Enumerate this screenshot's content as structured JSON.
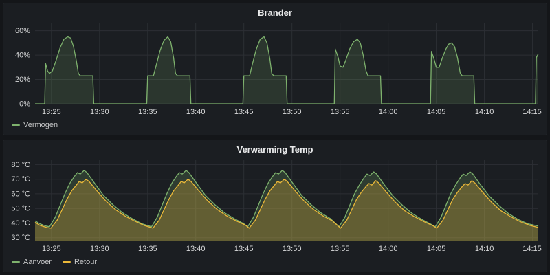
{
  "theme": {
    "page_bg": "#141619",
    "panel_bg": "#1b1e22",
    "grid": "#2c2f34",
    "tick_text": "#d8d9da",
    "title_text": "#e9eaeb"
  },
  "chart_data": [
    {
      "type": "area",
      "title": "Brander",
      "legend_position": "bottom-left",
      "grid": true,
      "x_range": [
        23.3,
        75.6
      ],
      "x_ticks": [
        "13:25",
        "13:30",
        "13:35",
        "13:40",
        "13:45",
        "13:50",
        "13:55",
        "14:00",
        "14:05",
        "14:10",
        "14:15"
      ],
      "x_tick_minutes": [
        25,
        30,
        35,
        40,
        45,
        50,
        55,
        60,
        65,
        70,
        75
      ],
      "ylim": [
        0,
        66
      ],
      "y_ticks": [
        0,
        20,
        40,
        60
      ],
      "y_tick_labels": [
        "0%",
        "20%",
        "40%",
        "60%"
      ],
      "series": [
        {
          "name": "Vermogen",
          "color": "#7EB26D",
          "fill_opacity": 0.17,
          "points": [
            [
              23.3,
              0
            ],
            [
              24.3,
              0
            ],
            [
              24.4,
              33
            ],
            [
              24.6,
              27
            ],
            [
              24.8,
              25
            ],
            [
              25.1,
              27
            ],
            [
              25.5,
              36
            ],
            [
              25.9,
              46
            ],
            [
              26.3,
              53
            ],
            [
              26.7,
              55
            ],
            [
              27.0,
              54
            ],
            [
              27.3,
              47
            ],
            [
              27.6,
              35
            ],
            [
              27.8,
              25
            ],
            [
              28.0,
              23
            ],
            [
              29.3,
              23
            ],
            [
              29.4,
              0
            ],
            [
              34.9,
              0
            ],
            [
              35.0,
              23
            ],
            [
              35.6,
              23
            ],
            [
              35.9,
              32
            ],
            [
              36.3,
              44
            ],
            [
              36.7,
              52
            ],
            [
              37.1,
              55
            ],
            [
              37.4,
              51
            ],
            [
              37.7,
              38
            ],
            [
              37.9,
              25
            ],
            [
              38.1,
              23
            ],
            [
              39.4,
              23
            ],
            [
              39.5,
              0
            ],
            [
              44.9,
              0
            ],
            [
              45.0,
              23
            ],
            [
              45.6,
              23
            ],
            [
              45.9,
              33
            ],
            [
              46.3,
              45
            ],
            [
              46.7,
              53
            ],
            [
              47.1,
              55
            ],
            [
              47.4,
              50
            ],
            [
              47.7,
              37
            ],
            [
              47.9,
              25
            ],
            [
              48.1,
              23
            ],
            [
              49.4,
              23
            ],
            [
              49.5,
              0
            ],
            [
              54.4,
              0
            ],
            [
              54.5,
              45
            ],
            [
              54.8,
              38
            ],
            [
              55.0,
              31
            ],
            [
              55.3,
              30
            ],
            [
              55.6,
              36
            ],
            [
              56.0,
              45
            ],
            [
              56.4,
              51
            ],
            [
              56.8,
              53
            ],
            [
              57.1,
              50
            ],
            [
              57.4,
              40
            ],
            [
              57.7,
              27
            ],
            [
              57.9,
              23
            ],
            [
              59.2,
              23
            ],
            [
              59.3,
              0
            ],
            [
              64.4,
              0
            ],
            [
              64.5,
              43
            ],
            [
              64.8,
              36
            ],
            [
              65.0,
              30
            ],
            [
              65.3,
              30
            ],
            [
              65.6,
              37
            ],
            [
              66.0,
              45
            ],
            [
              66.3,
              49
            ],
            [
              66.6,
              50
            ],
            [
              66.9,
              47
            ],
            [
              67.2,
              38
            ],
            [
              67.5,
              25
            ],
            [
              67.7,
              23
            ],
            [
              68.9,
              23
            ],
            [
              69.0,
              0
            ],
            [
              75.3,
              0
            ],
            [
              75.4,
              38
            ],
            [
              75.6,
              41
            ]
          ]
        }
      ]
    },
    {
      "type": "area",
      "title": "Verwarming Temp",
      "legend_position": "bottom-left",
      "grid": true,
      "x_range": [
        23.3,
        75.6
      ],
      "x_ticks": [
        "13:25",
        "13:30",
        "13:35",
        "13:40",
        "13:45",
        "13:50",
        "13:55",
        "14:00",
        "14:05",
        "14:10",
        "14:15"
      ],
      "x_tick_minutes": [
        25,
        30,
        35,
        40,
        45,
        50,
        55,
        60,
        65,
        70,
        75
      ],
      "ylim": [
        28,
        83
      ],
      "y_ticks": [
        30,
        40,
        50,
        60,
        70,
        80
      ],
      "y_tick_labels": [
        "30 °C",
        "40 °C",
        "50 °C",
        "60 °C",
        "70 °C",
        "80 °C"
      ],
      "series": [
        {
          "name": "Aanvoer",
          "color": "#7EB26D",
          "fill_opacity": 0.2,
          "points": [
            [
              23.3,
              41.5
            ],
            [
              23.8,
              39.5
            ],
            [
              24.4,
              38
            ],
            [
              24.8,
              37.5
            ],
            [
              25.4,
              44
            ],
            [
              25.9,
              52
            ],
            [
              26.4,
              60
            ],
            [
              26.9,
              67
            ],
            [
              27.4,
              72
            ],
            [
              27.7,
              74.5
            ],
            [
              28.0,
              73.5
            ],
            [
              28.4,
              76
            ],
            [
              28.7,
              74.5
            ],
            [
              29.4,
              68
            ],
            [
              30.4,
              59
            ],
            [
              31.4,
              52.5
            ],
            [
              32.4,
              47
            ],
            [
              33.4,
              43
            ],
            [
              34.4,
              39.5
            ],
            [
              35.4,
              37.5
            ],
            [
              36.0,
              44
            ],
            [
              36.5,
              52
            ],
            [
              37.0,
              60
            ],
            [
              37.5,
              67
            ],
            [
              38.0,
              72
            ],
            [
              38.3,
              74.5
            ],
            [
              38.6,
              73.5
            ],
            [
              39.0,
              76
            ],
            [
              39.3,
              74.5
            ],
            [
              40.0,
              68
            ],
            [
              41.0,
              59
            ],
            [
              42.0,
              52.5
            ],
            [
              43.0,
              47
            ],
            [
              44.0,
              43
            ],
            [
              45.0,
              39.5
            ],
            [
              45.4,
              37.5
            ],
            [
              46.0,
              44
            ],
            [
              46.5,
              52
            ],
            [
              47.0,
              60
            ],
            [
              47.5,
              67
            ],
            [
              48.0,
              72
            ],
            [
              48.3,
              74.5
            ],
            [
              48.6,
              73.5
            ],
            [
              49.0,
              76
            ],
            [
              49.3,
              74.5
            ],
            [
              50.0,
              68
            ],
            [
              51.0,
              59
            ],
            [
              52.0,
              52.5
            ],
            [
              53.0,
              47
            ],
            [
              54.0,
              43
            ],
            [
              54.9,
              37.5
            ],
            [
              55.5,
              44
            ],
            [
              56.0,
              52
            ],
            [
              56.5,
              60
            ],
            [
              57.0,
              66
            ],
            [
              57.5,
              71
            ],
            [
              57.8,
              73.5
            ],
            [
              58.1,
              72.5
            ],
            [
              58.5,
              75
            ],
            [
              58.8,
              73.5
            ],
            [
              59.5,
              67
            ],
            [
              60.5,
              58.5
            ],
            [
              61.5,
              52
            ],
            [
              62.5,
              46.5
            ],
            [
              63.5,
              42.5
            ],
            [
              64.5,
              39
            ],
            [
              64.9,
              37.5
            ],
            [
              65.5,
              44
            ],
            [
              66.0,
              52
            ],
            [
              66.5,
              60
            ],
            [
              67.0,
              66
            ],
            [
              67.5,
              71
            ],
            [
              67.8,
              73.5
            ],
            [
              68.1,
              72.5
            ],
            [
              68.5,
              75
            ],
            [
              68.8,
              73.5
            ],
            [
              69.5,
              67
            ],
            [
              70.5,
              58.5
            ],
            [
              71.5,
              52
            ],
            [
              72.5,
              46.5
            ],
            [
              73.5,
              42.5
            ],
            [
              74.5,
              39.5
            ],
            [
              75.6,
              38
            ]
          ]
        },
        {
          "name": "Retour",
          "color": "#EAB839",
          "fill_opacity": 0.28,
          "points": [
            [
              23.3,
              40.5
            ],
            [
              23.8,
              38.5
            ],
            [
              24.5,
              37
            ],
            [
              24.95,
              36.5
            ],
            [
              25.6,
              42
            ],
            [
              26.1,
              49
            ],
            [
              26.6,
              56
            ],
            [
              27.1,
              62
            ],
            [
              27.6,
              66
            ],
            [
              27.9,
              68.5
            ],
            [
              28.2,
              67.5
            ],
            [
              28.6,
              70
            ],
            [
              28.9,
              68.5
            ],
            [
              29.6,
              63
            ],
            [
              30.6,
              55.5
            ],
            [
              31.6,
              49.5
            ],
            [
              32.6,
              45
            ],
            [
              33.6,
              41.5
            ],
            [
              34.6,
              38.5
            ],
            [
              35.55,
              36.5
            ],
            [
              36.2,
              42
            ],
            [
              36.7,
              49
            ],
            [
              37.2,
              56
            ],
            [
              37.7,
              62
            ],
            [
              38.2,
              66
            ],
            [
              38.5,
              68.5
            ],
            [
              38.8,
              67.5
            ],
            [
              39.2,
              70
            ],
            [
              39.5,
              68.5
            ],
            [
              40.2,
              63
            ],
            [
              41.2,
              55.5
            ],
            [
              42.2,
              49.5
            ],
            [
              43.2,
              45
            ],
            [
              44.2,
              41.5
            ],
            [
              45.2,
              38.5
            ],
            [
              45.55,
              36.5
            ],
            [
              46.2,
              42
            ],
            [
              46.7,
              49
            ],
            [
              47.2,
              56
            ],
            [
              47.7,
              62
            ],
            [
              48.2,
              66
            ],
            [
              48.5,
              68.5
            ],
            [
              48.8,
              67.5
            ],
            [
              49.2,
              70
            ],
            [
              49.5,
              68.5
            ],
            [
              50.2,
              63
            ],
            [
              51.2,
              55.5
            ],
            [
              52.2,
              49.5
            ],
            [
              53.2,
              45
            ],
            [
              54.2,
              41.5
            ],
            [
              55.05,
              36.5
            ],
            [
              55.7,
              42
            ],
            [
              56.2,
              49
            ],
            [
              56.7,
              56
            ],
            [
              57.2,
              61
            ],
            [
              57.7,
              65
            ],
            [
              58.0,
              67
            ],
            [
              58.3,
              66
            ],
            [
              58.7,
              69
            ],
            [
              59.0,
              67.5
            ],
            [
              59.7,
              62
            ],
            [
              60.7,
              54.5
            ],
            [
              61.7,
              48.5
            ],
            [
              62.7,
              44.5
            ],
            [
              63.7,
              41
            ],
            [
              64.7,
              38
            ],
            [
              65.05,
              36.5
            ],
            [
              65.7,
              42
            ],
            [
              66.2,
              49
            ],
            [
              66.7,
              56
            ],
            [
              67.2,
              61
            ],
            [
              67.7,
              65
            ],
            [
              68.0,
              67
            ],
            [
              68.3,
              66
            ],
            [
              68.7,
              69
            ],
            [
              69.0,
              67.5
            ],
            [
              69.7,
              62
            ],
            [
              70.7,
              54.5
            ],
            [
              71.7,
              48.5
            ],
            [
              72.7,
              44.5
            ],
            [
              73.7,
              41
            ],
            [
              74.7,
              38.5
            ],
            [
              75.6,
              37
            ]
          ]
        }
      ]
    }
  ]
}
